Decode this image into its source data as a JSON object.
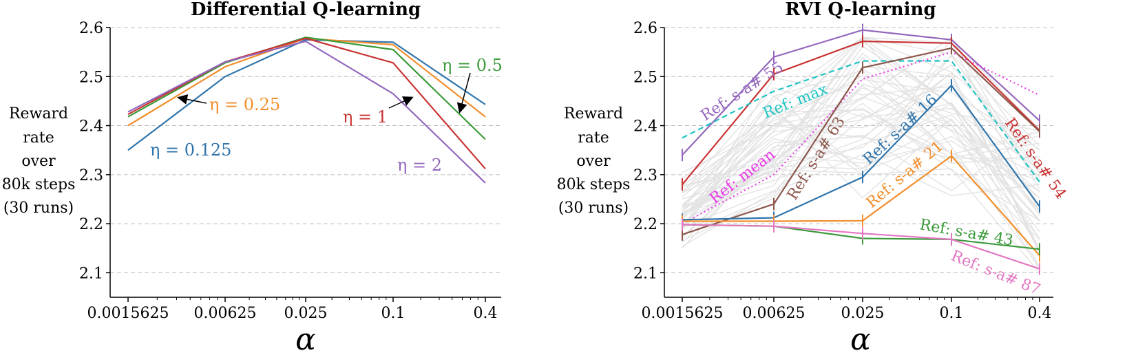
{
  "chart_data": [
    {
      "type": "line",
      "title": "Differential Q-learning",
      "xlabel": "α",
      "ylabel": [
        "Reward",
        "rate",
        "over",
        "80k steps",
        "(30 runs)"
      ],
      "categories": [
        "0.0015625",
        "0.00625",
        "0.025",
        "0.1",
        "0.4"
      ],
      "ylim": [
        2.05,
        2.6
      ],
      "yticks": [
        "2.1",
        "2.2",
        "2.3",
        "2.4",
        "2.5",
        "2.6"
      ],
      "series": [
        {
          "name": "η = 0.125",
          "color": "#2f74ab",
          "values": [
            2.35,
            2.5,
            2.575,
            2.57,
            2.443
          ]
        },
        {
          "name": "η = 0.25",
          "color": "#f28e2b",
          "values": [
            2.4,
            2.52,
            2.578,
            2.565,
            2.418
          ]
        },
        {
          "name": "η = 0.5",
          "color": "#3a9a3a",
          "values": [
            2.418,
            2.528,
            2.58,
            2.555,
            2.372
          ]
        },
        {
          "name": "η = 1",
          "color": "#c93232",
          "values": [
            2.423,
            2.53,
            2.578,
            2.528,
            2.312
          ]
        },
        {
          "name": "η = 2",
          "color": "#9467bd",
          "values": [
            2.428,
            2.53,
            2.572,
            2.465,
            2.283
          ]
        }
      ]
    },
    {
      "type": "line",
      "title": "RVI Q-learning",
      "xlabel": "α",
      "ylabel": [
        "Reward",
        "rate",
        "over",
        "80k steps",
        "(30 runs)"
      ],
      "categories": [
        "0.0015625",
        "0.00625",
        "0.025",
        "0.1",
        "0.4"
      ],
      "ylim": [
        2.05,
        2.6
      ],
      "yticks": [
        "2.1",
        "2.2",
        "2.3",
        "2.4",
        "2.5",
        "2.6"
      ],
      "series": [
        {
          "name": "Ref: s-a# 55",
          "color": "#9467bd",
          "style": "solid",
          "values": [
            2.34,
            2.54,
            2.595,
            2.575,
            2.41
          ]
        },
        {
          "name": "Ref: s-a# 54",
          "color": "#c93232",
          "style": "solid",
          "values": [
            2.28,
            2.505,
            2.572,
            2.568,
            2.39
          ]
        },
        {
          "name": "Ref: max",
          "color": "#1fc4c4",
          "style": "dashed",
          "values": [
            2.375,
            2.47,
            2.532,
            2.532,
            2.285
          ]
        },
        {
          "name": "Ref: mean",
          "color": "#e83ae8",
          "style": "dotted",
          "values": [
            2.2,
            2.3,
            2.495,
            2.55,
            2.462
          ]
        },
        {
          "name": "Ref: s-a# 63",
          "color": "#8c564b",
          "style": "solid",
          "values": [
            2.178,
            2.24,
            2.518,
            2.558,
            2.388
          ]
        },
        {
          "name": "Ref: s-a# 16",
          "color": "#2f74ab",
          "style": "solid",
          "values": [
            2.208,
            2.212,
            2.295,
            2.482,
            2.235
          ]
        },
        {
          "name": "Ref: s-a# 21",
          "color": "#f28e2b",
          "style": "solid",
          "values": [
            2.205,
            2.205,
            2.206,
            2.338,
            2.135
          ]
        },
        {
          "name": "Ref: s-a# 43",
          "color": "#3a9a3a",
          "style": "solid",
          "values": [
            2.198,
            2.195,
            2.17,
            2.168,
            2.148
          ]
        },
        {
          "name": "Ref: s-a# 87",
          "color": "#e377c2",
          "style": "solid",
          "values": [
            2.198,
            2.195,
            2.18,
            2.168,
            2.108
          ]
        }
      ]
    }
  ]
}
